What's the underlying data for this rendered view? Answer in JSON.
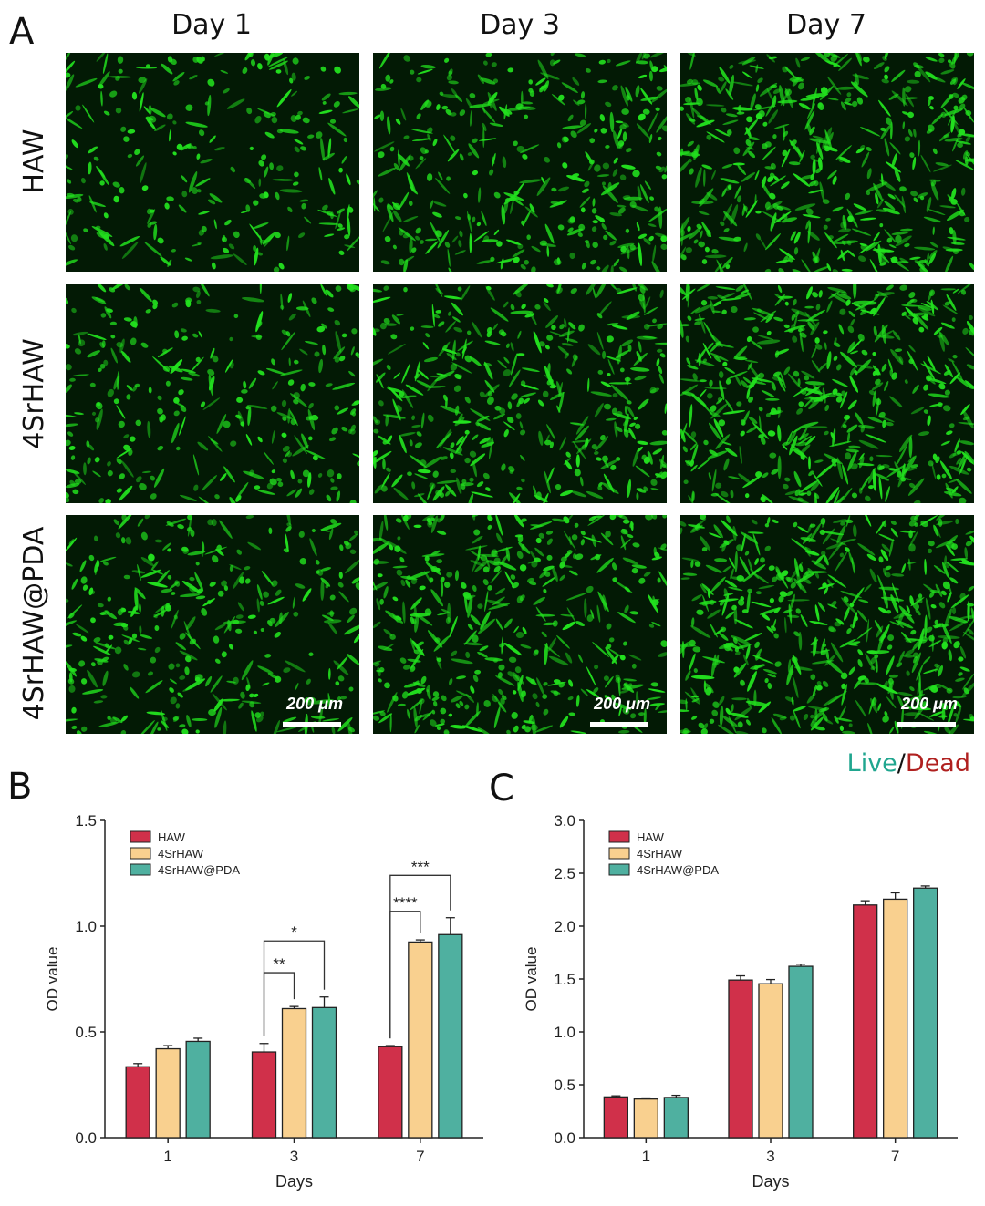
{
  "panels": {
    "A": "A",
    "B": "B",
    "C": "C"
  },
  "microscopy": {
    "columns": [
      "Day 1",
      "Day 3",
      "Day 7"
    ],
    "rows": [
      "HAW",
      "4SrHAW",
      "4SrHAW@PDA"
    ],
    "scale_label": "200 μm",
    "legend_live": "Live",
    "legend_sep": "/",
    "legend_dead": "Dead",
    "colors": {
      "cell": "#22e01e",
      "background": "#031a05",
      "live": "#20a68f",
      "dead": "#b0201f"
    }
  },
  "chart_data": [
    {
      "type": "bar",
      "panel": "B",
      "xlabel": "Days",
      "ylabel": "OD value",
      "categories": [
        "1",
        "3",
        "7"
      ],
      "ylim": [
        0,
        1.5
      ],
      "yticks": [
        "0.0",
        "0.5",
        "1.0",
        "1.5"
      ],
      "legend_position": "top-left",
      "series": [
        {
          "name": "HAW",
          "color": "#d0304a",
          "values": [
            0.335,
            0.405,
            0.43
          ],
          "errors": [
            0.015,
            0.04,
            0.005
          ]
        },
        {
          "name": "4SrHAW",
          "color": "#f9d08f",
          "values": [
            0.42,
            0.61,
            0.925
          ],
          "errors": [
            0.015,
            0.01,
            0.01
          ]
        },
        {
          "name": "4SrHAW@PDA",
          "color": "#4fb0a0",
          "values": [
            0.455,
            0.615,
            0.96
          ],
          "errors": [
            0.015,
            0.05,
            0.08
          ]
        }
      ],
      "annotations": [
        {
          "category": "3",
          "from": "HAW",
          "to": "4SrHAW",
          "label": "**",
          "level": 0.78
        },
        {
          "category": "3",
          "from": "HAW",
          "to": "4SrHAW@PDA",
          "label": "*",
          "level": 0.93
        },
        {
          "category": "7",
          "from": "HAW",
          "to": "4SrHAW",
          "label": "****",
          "level": 1.07
        },
        {
          "category": "7",
          "from": "HAW",
          "to": "4SrHAW@PDA",
          "label": "***",
          "level": 1.24
        }
      ]
    },
    {
      "type": "bar",
      "panel": "C",
      "xlabel": "Days",
      "ylabel": "OD value",
      "categories": [
        "1",
        "3",
        "7"
      ],
      "ylim": [
        0,
        3.0
      ],
      "yticks": [
        "0.0",
        "0.5",
        "1.0",
        "1.5",
        "2.0",
        "2.5",
        "3.0"
      ],
      "legend_position": "top-left",
      "series": [
        {
          "name": "HAW",
          "color": "#d0304a",
          "values": [
            0.385,
            1.49,
            2.2
          ],
          "errors": [
            0.01,
            0.04,
            0.04
          ]
        },
        {
          "name": "4SrHAW",
          "color": "#f9d08f",
          "values": [
            0.365,
            1.455,
            2.255
          ],
          "errors": [
            0.01,
            0.04,
            0.06
          ]
        },
        {
          "name": "4SrHAW@PDA",
          "color": "#4fb0a0",
          "values": [
            0.38,
            1.62,
            2.36
          ],
          "errors": [
            0.02,
            0.02,
            0.02
          ]
        }
      ]
    }
  ]
}
